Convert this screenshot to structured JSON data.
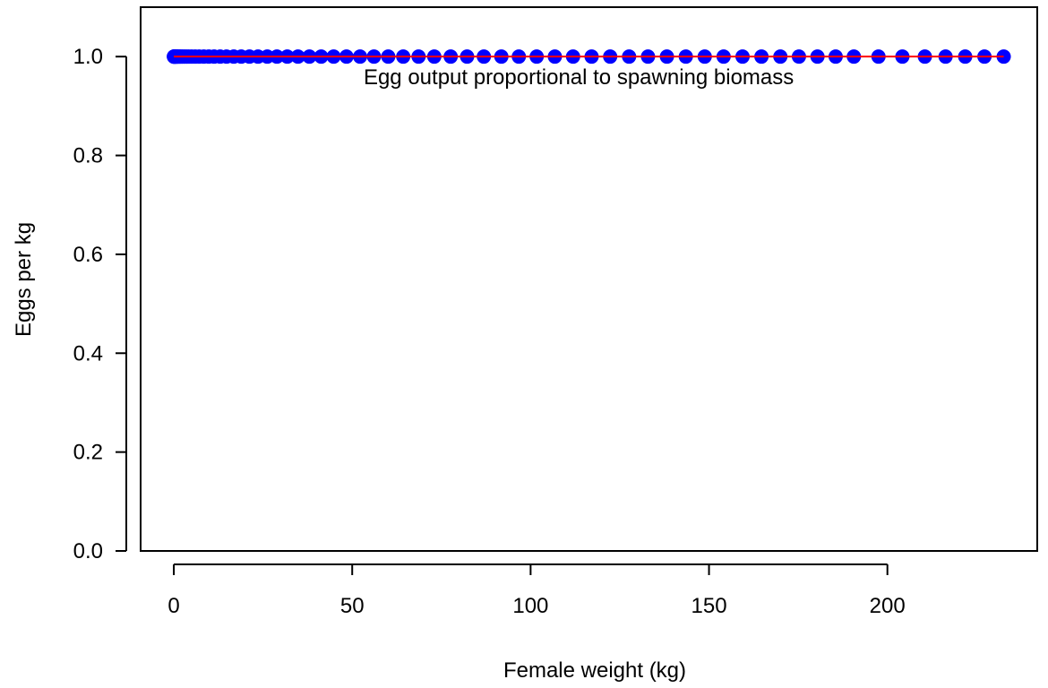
{
  "chart_data": {
    "type": "scatter",
    "title": "",
    "xlabel": "Female weight (kg)",
    "ylabel": "Eggs per kg",
    "xlim": [
      -9.3,
      242
    ],
    "ylim": [
      0,
      1.1
    ],
    "x_ticks": [
      0,
      50,
      100,
      150,
      200
    ],
    "x_tick_labels": [
      "0",
      "50",
      "100",
      "150",
      "200"
    ],
    "y_ticks": [
      0,
      0.2,
      0.4,
      0.6,
      0.8,
      1.0
    ],
    "y_tick_labels": [
      "0.0",
      "0.2",
      "0.4",
      "0.6",
      "0.8",
      "1.0"
    ],
    "grid": false,
    "annotation": {
      "text": "Egg output proportional to spawning biomass",
      "x": 115,
      "y": 0.975
    },
    "series": [
      {
        "kind": "points",
        "color": "#0000ff",
        "x": [
          0.02,
          0.05,
          0.1,
          0.2,
          0.35,
          0.55,
          0.8,
          1.1,
          1.5,
          2.0,
          2.6,
          3.3,
          4.1,
          5.0,
          6.0,
          7.1,
          8.4,
          9.8,
          11.3,
          13.0,
          14.8,
          16.8,
          18.9,
          21.2,
          23.6,
          26.2,
          28.9,
          31.8,
          34.8,
          38.0,
          41.3,
          44.8,
          48.4,
          52.2,
          56.1,
          60.1,
          64.3,
          68.6,
          73.0,
          77.6,
          82.2,
          86.9,
          91.8,
          96.7,
          101.7,
          106.8,
          111.9,
          117.1,
          122.3,
          127.6,
          132.9,
          138.2,
          143.5,
          148.8,
          154.1,
          159.4,
          164.7,
          170.0,
          175.2,
          180.4,
          185.5,
          190.6,
          197.5,
          204.2,
          210.5,
          216.3,
          221.8,
          227.2,
          232.6
        ],
        "y": 1.0
      },
      {
        "kind": "line",
        "color": "#ff0000",
        "x": [
          0,
          232.6
        ],
        "y": [
          1.0,
          1.0
        ]
      }
    ]
  }
}
